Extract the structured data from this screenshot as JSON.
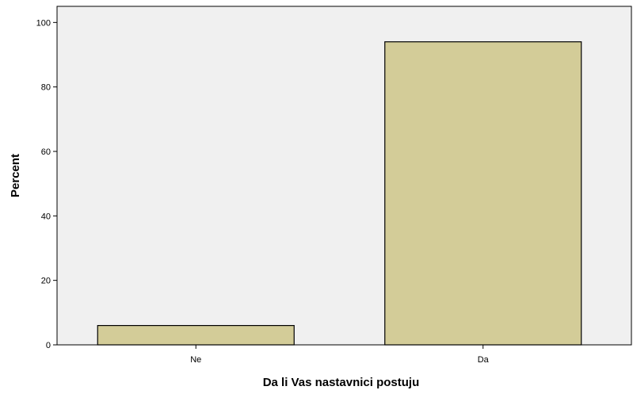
{
  "chart_data": {
    "type": "bar",
    "categories": [
      "Ne",
      "Da"
    ],
    "values": [
      6,
      94
    ],
    "title": "",
    "xlabel": "Da li Vas nastavnici postuju",
    "ylabel": "Percent",
    "ylim": [
      0,
      105
    ],
    "yticks": [
      0,
      20,
      40,
      60,
      80,
      100
    ],
    "grid": false,
    "colors": {
      "bar": "#d3cc98",
      "plot_background": "#f0f0f0",
      "axis": "#000000"
    }
  }
}
